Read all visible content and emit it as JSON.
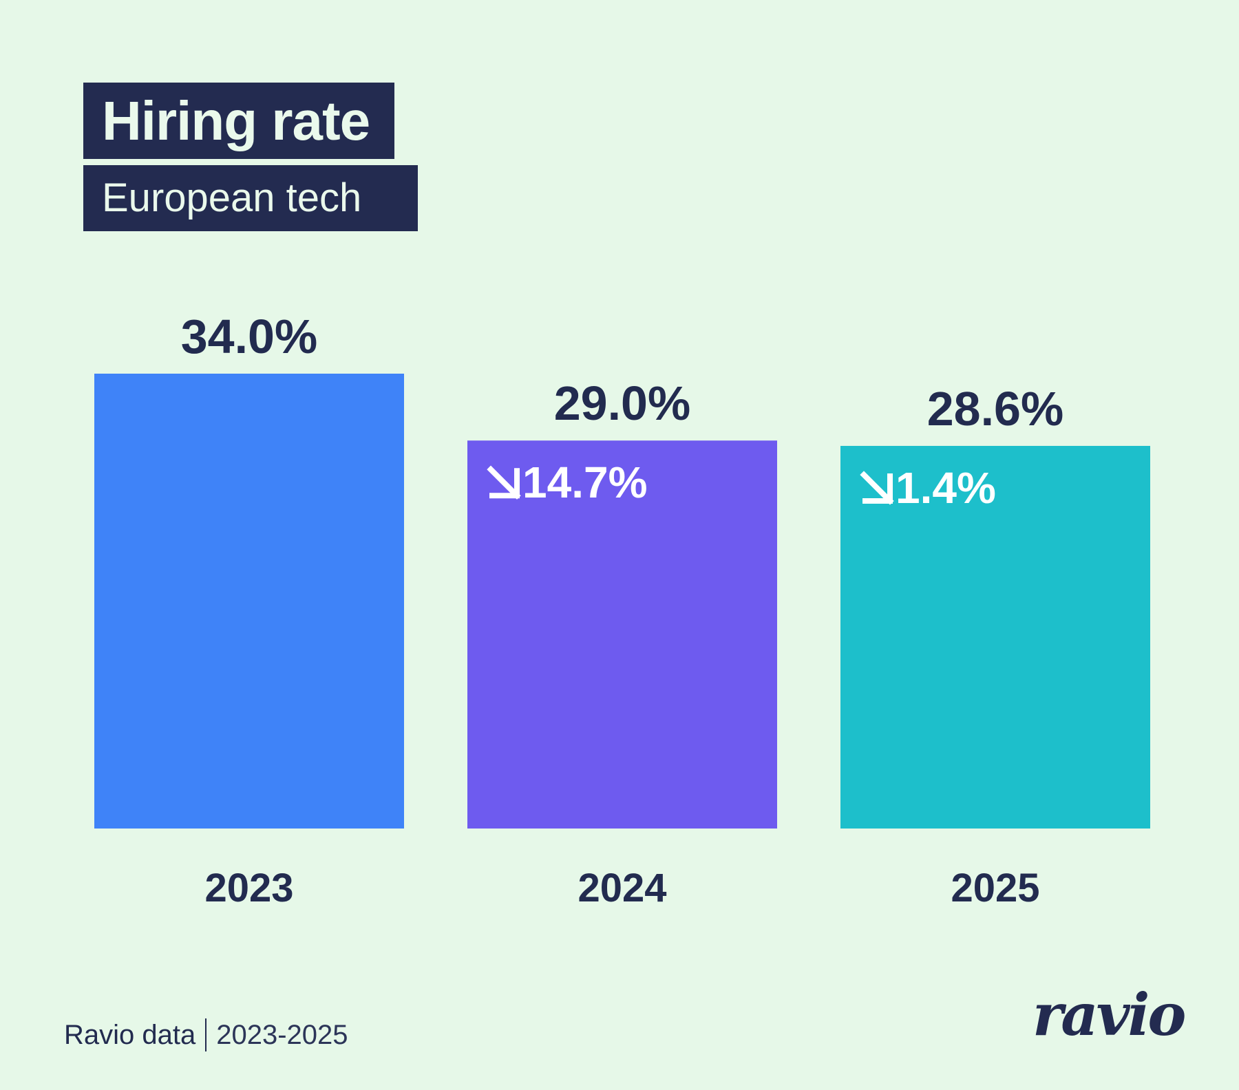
{
  "header": {
    "title": "Hiring rate",
    "subtitle": "European tech"
  },
  "footer": {
    "source": "Ravio data",
    "range": "2023-2025",
    "logo": "ravio"
  },
  "colors": {
    "background": "#E6F8E8",
    "text": "#222B4F",
    "title_box": "#232B50",
    "bar_2023": "#3F83F8",
    "bar_2024": "#6E5BEF",
    "bar_2025": "#1DBFCB"
  },
  "chart_data": {
    "type": "bar",
    "title": "Hiring rate",
    "subtitle": "European tech",
    "xlabel": "",
    "ylabel": "",
    "categories": [
      "2023",
      "2024",
      "2025"
    ],
    "values": [
      34.0,
      29.0,
      28.6
    ],
    "value_labels": [
      "34.0%",
      "29.0%",
      "28.6%"
    ],
    "change_labels": [
      "",
      "14.7%",
      "1.4%"
    ],
    "change_direction": [
      "",
      "down",
      "down"
    ],
    "change_icon": "arrow-down-right-icon",
    "bar_colors": [
      "#3F83F8",
      "#6E5BEF",
      "#1DBFCB"
    ],
    "ylim": [
      0,
      34.0
    ],
    "grid": false,
    "legend": "none"
  }
}
